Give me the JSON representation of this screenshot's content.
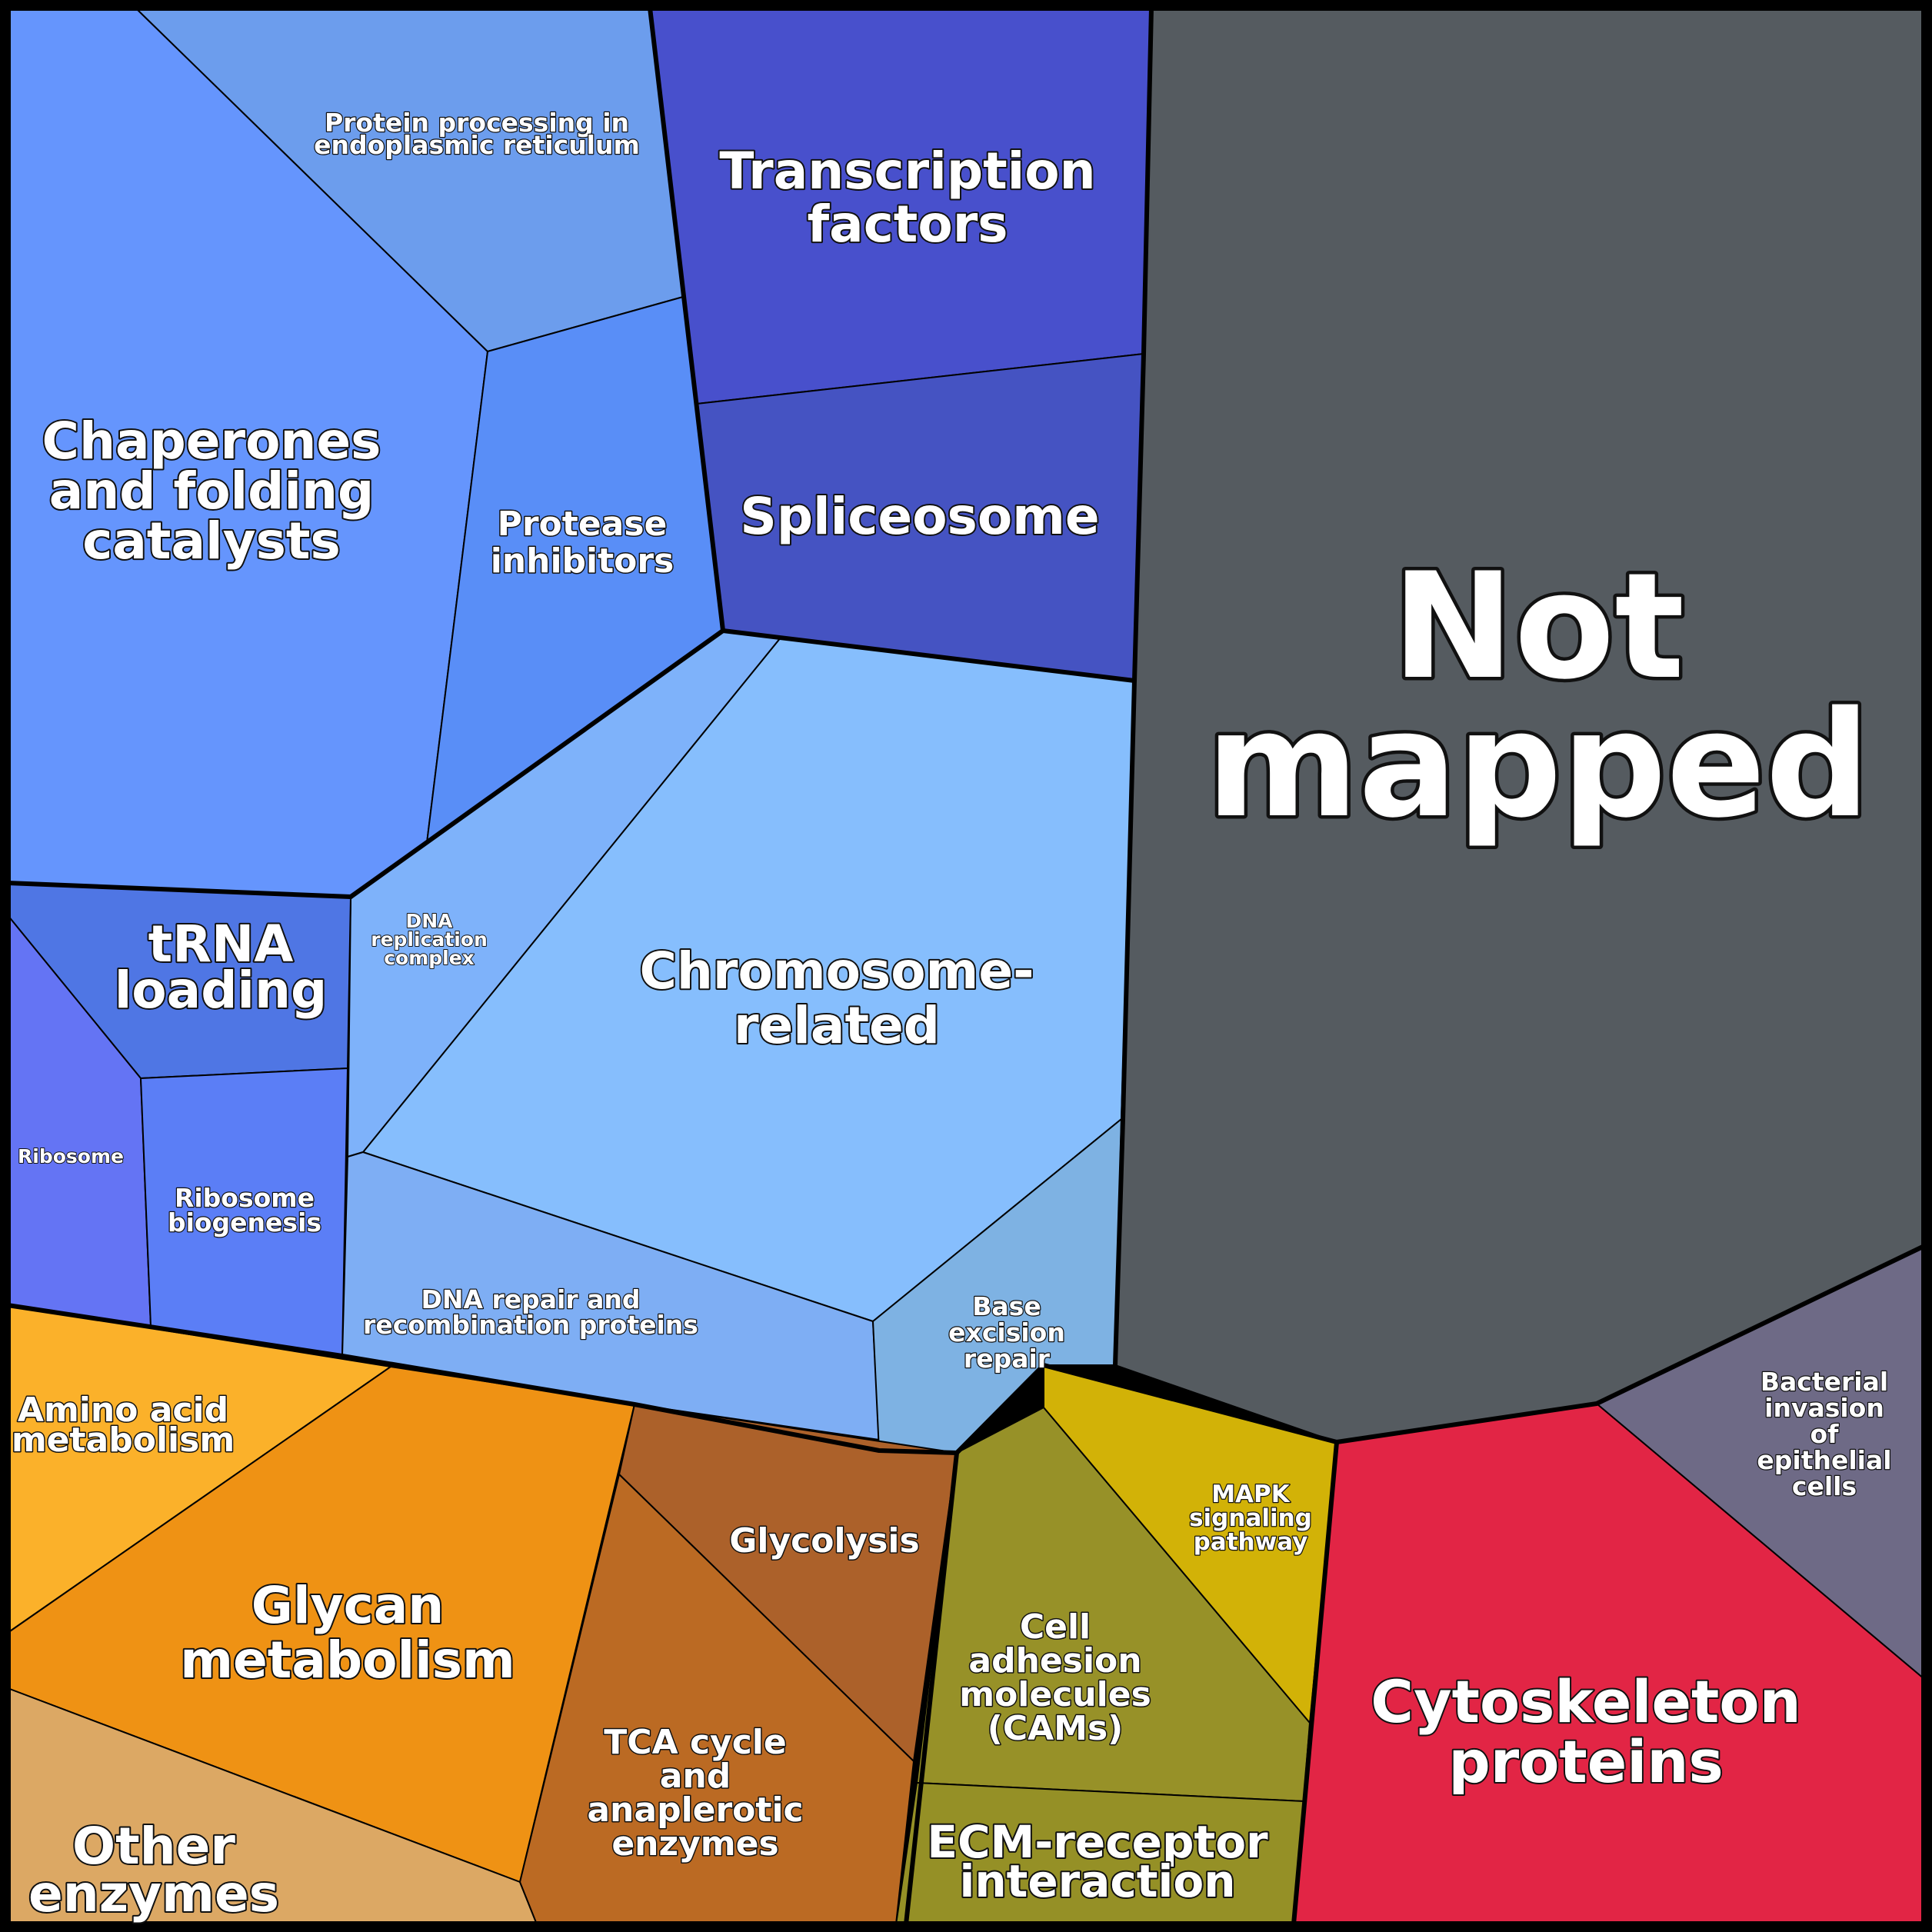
{
  "cells": [
    {
      "id": "not-mapped",
      "lines": [
        "Not",
        "mapped"
      ],
      "color": "#555b60"
    },
    {
      "id": "chaperones",
      "lines": [
        "Chaperones",
        "and folding",
        "catalysts"
      ],
      "color": "#6595fd"
    },
    {
      "id": "protein-processing",
      "lines": [
        "Protein processing in",
        "endoplasmic reticulum"
      ],
      "color": "#6c9ded"
    },
    {
      "id": "transcription-factors",
      "lines": [
        "Transcription",
        "factors"
      ],
      "color": "#4850cc"
    },
    {
      "id": "spliceosome",
      "lines": [
        "Spliceosome"
      ],
      "color": "#4553c2"
    },
    {
      "id": "protease-inhibitors",
      "lines": [
        "Protease",
        "inhibitors"
      ],
      "color": "#598ef7"
    },
    {
      "id": "chromosome-related",
      "lines": [
        "Chromosome-",
        "related"
      ],
      "color": "#86befd"
    },
    {
      "id": "dna-replication",
      "lines": [
        "DNA",
        "replication",
        "complex"
      ],
      "color": "#7eb2fa"
    },
    {
      "id": "trna-loading",
      "lines": [
        "tRNA",
        "loading"
      ],
      "color": "#4f76e4"
    },
    {
      "id": "ribosome",
      "lines": [
        "Ribosome"
      ],
      "color": "#6474f4"
    },
    {
      "id": "ribosome-biogenesis",
      "lines": [
        "Ribosome",
        "biogenesis"
      ],
      "color": "#5b7ef6"
    },
    {
      "id": "dna-repair",
      "lines": [
        "DNA repair and",
        "recombination proteins"
      ],
      "color": "#7eaef4"
    },
    {
      "id": "base-excision-repair",
      "lines": [
        "Base",
        "excision",
        "repair"
      ],
      "color": "#7eb2e3"
    },
    {
      "id": "amino-acid-metabolism",
      "lines": [
        "Amino acid",
        "metabolism"
      ],
      "color": "#fbb12a"
    },
    {
      "id": "glycan-metabolism",
      "lines": [
        "Glycan",
        "metabolism"
      ],
      "color": "#ef9214"
    },
    {
      "id": "other-enzymes",
      "lines": [
        "Other",
        "enzymes"
      ],
      "color": "#dca864"
    },
    {
      "id": "glycolysis",
      "lines": [
        "Glycolysis"
      ],
      "color": "#ac612a"
    },
    {
      "id": "tca-cycle",
      "lines": [
        "TCA cycle",
        "and",
        "anaplerotic",
        "enzymes"
      ],
      "color": "#bb6a23"
    },
    {
      "id": "cell-adhesion",
      "lines": [
        "Cell",
        "adhesion",
        "molecules",
        "(CAMs)"
      ],
      "color": "#979128"
    },
    {
      "id": "ecm-receptor",
      "lines": [
        "ECM-receptor",
        "interaction"
      ],
      "color": "#959026"
    },
    {
      "id": "mapk-signaling",
      "lines": [
        "MAPK",
        "signaling",
        "pathway"
      ],
      "color": "#d2b207"
    },
    {
      "id": "cytoskeleton",
      "lines": [
        "Cytoskeleton",
        "proteins"
      ],
      "color": "#e22545"
    },
    {
      "id": "bacterial-invasion",
      "lines": [
        "Bacterial",
        "invasion",
        "of",
        "epithelial",
        "cells"
      ],
      "color": "#6e6a86"
    }
  ]
}
